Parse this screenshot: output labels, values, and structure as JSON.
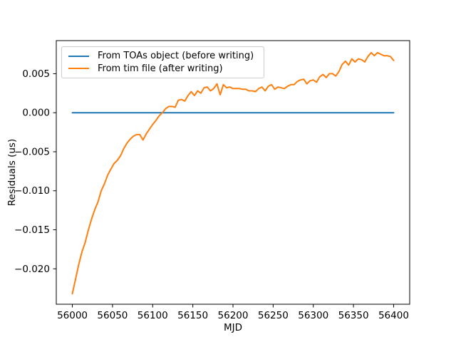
{
  "chart_data": {
    "type": "line",
    "title": "",
    "xlabel": "MJD",
    "ylabel": "Residuals (us)",
    "xlim": [
      55980,
      56420
    ],
    "ylim": [
      -0.02454,
      0.00924
    ],
    "grid": false,
    "legend_position": "upper left",
    "xticks": [
      56000,
      56050,
      56100,
      56150,
      56200,
      56250,
      56300,
      56350,
      56400
    ],
    "yticks": [
      {
        "value": 0.005,
        "label": "0.005"
      },
      {
        "value": 0.0,
        "label": "0.000"
      },
      {
        "value": -0.005,
        "label": "−0.005"
      },
      {
        "value": -0.01,
        "label": "−0.010"
      },
      {
        "value": -0.015,
        "label": "−0.015"
      },
      {
        "value": -0.02,
        "label": "−0.020"
      }
    ],
    "series": [
      {
        "id": "toas-object",
        "name": "From TOAs object (before writing)",
        "color": "#1f77b4",
        "x": [
          56000,
          56400
        ],
        "y": [
          0.0,
          0.0
        ]
      },
      {
        "id": "tim-file",
        "name": "From tim file (after writing)",
        "color": "#ff7f0e",
        "x": [
          56000,
          56004,
          56008,
          56012,
          56016,
          56020,
          56024,
          56028,
          56032,
          56036,
          56040,
          56044,
          56048,
          56052,
          56056,
          56060,
          56064,
          56068,
          56072,
          56076,
          56080,
          56084,
          56088,
          56092,
          56096,
          56100,
          56104,
          56108,
          56112,
          56116,
          56120,
          56124,
          56128,
          56132,
          56136,
          56140,
          56144,
          56148,
          56152,
          56156,
          56160,
          56164,
          56168,
          56172,
          56176,
          56180,
          56184,
          56188,
          56192,
          56196,
          56200,
          56204,
          56208,
          56212,
          56216,
          56220,
          56224,
          56228,
          56232,
          56236,
          56240,
          56244,
          56248,
          56252,
          56256,
          56260,
          56264,
          56268,
          56272,
          56276,
          56280,
          56284,
          56288,
          56292,
          56296,
          56300,
          56304,
          56308,
          56312,
          56316,
          56320,
          56324,
          56328,
          56332,
          56336,
          56340,
          56344,
          56348,
          56352,
          56356,
          56360,
          56364,
          56368,
          56372,
          56376,
          56380,
          56384,
          56388,
          56392,
          56396,
          56400
        ],
        "y": [
          -0.0232,
          -0.0213,
          -0.0194,
          -0.0178,
          -0.0166,
          -0.015,
          -0.0136,
          -0.0124,
          -0.0114,
          -0.01,
          -0.0091,
          -0.008,
          -0.0072,
          -0.0065,
          -0.0061,
          -0.0055,
          -0.0046,
          -0.0039,
          -0.0034,
          -0.003,
          -0.0028,
          -0.0028,
          -0.0035,
          -0.0027,
          -0.0021,
          -0.0015,
          -0.001,
          -0.0004,
          0.0,
          0.0005,
          0.0008,
          0.0008,
          0.0007,
          0.0016,
          0.0017,
          0.0015,
          0.0022,
          0.0027,
          0.0022,
          0.0028,
          0.0025,
          0.0032,
          0.0033,
          0.0028,
          0.0031,
          0.0037,
          0.0023,
          0.0036,
          0.0032,
          0.0033,
          0.0031,
          0.0031,
          0.0031,
          0.003,
          0.003,
          0.0028,
          0.0028,
          0.0027,
          0.0031,
          0.0033,
          0.0028,
          0.0034,
          0.0036,
          0.003,
          0.0033,
          0.0032,
          0.0031,
          0.0034,
          0.0036,
          0.0036,
          0.004,
          0.0042,
          0.0043,
          0.0037,
          0.0041,
          0.0042,
          0.0039,
          0.0046,
          0.0049,
          0.0045,
          0.005,
          0.005,
          0.0047,
          0.0053,
          0.0062,
          0.0066,
          0.0061,
          0.0069,
          0.0065,
          0.0069,
          0.0068,
          0.0065,
          0.0072,
          0.0077,
          0.0073,
          0.0077,
          0.0075,
          0.0073,
          0.0073,
          0.0072,
          0.0067
        ]
      }
    ]
  }
}
